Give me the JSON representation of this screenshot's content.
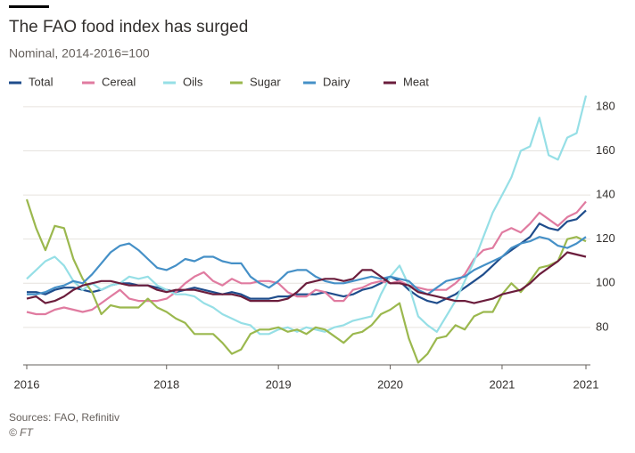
{
  "chart_data": {
    "type": "line",
    "title": "The FAO food index has surged",
    "subtitle": "Nominal, 2014-2016=100",
    "source": "Sources: FAO, Refinitiv",
    "credit": "© FT",
    "categories": [
      "2016",
      null,
      null,
      null,
      null,
      null,
      null,
      null,
      null,
      null,
      null,
      null,
      null,
      null,
      null,
      "2018",
      null,
      null,
      null,
      null,
      null,
      null,
      null,
      null,
      null,
      null,
      null,
      "2019",
      null,
      null,
      null,
      null,
      null,
      null,
      null,
      null,
      null,
      null,
      null,
      "2020",
      null,
      null,
      null,
      null,
      null,
      null,
      null,
      null,
      null,
      null,
      null,
      "2021",
      null,
      null,
      null,
      null,
      null,
      null,
      null,
      null,
      "2021"
    ],
    "ylim": [
      63,
      186
    ],
    "yticks": [
      80,
      100,
      120,
      140,
      160,
      180
    ],
    "grid": true,
    "series": [
      {
        "name": "Total",
        "color": "#1f4d8c",
        "values": [
          96,
          96,
          95,
          97,
          98,
          98,
          97,
          96,
          97,
          99,
          100,
          100,
          99,
          99,
          98,
          97,
          96,
          97,
          98,
          97,
          96,
          95,
          96,
          95,
          93,
          93,
          93,
          94,
          94,
          95,
          95,
          95,
          96,
          95,
          94,
          95,
          97,
          98,
          100,
          103,
          101,
          97,
          94,
          92,
          91,
          93,
          95,
          98,
          101,
          104,
          108,
          112,
          115,
          118,
          121,
          127,
          125,
          124,
          128,
          129,
          133
        ]
      },
      {
        "name": "Cereal",
        "color": "#e07ba0",
        "values": [
          87,
          86,
          86,
          88,
          89,
          88,
          87,
          88,
          91,
          94,
          97,
          93,
          92,
          92,
          92,
          93,
          96,
          100,
          103,
          105,
          101,
          99,
          102,
          100,
          100,
          101,
          101,
          100,
          96,
          94,
          94,
          97,
          96,
          92,
          92,
          97,
          98,
          100,
          101,
          100,
          101,
          99,
          98,
          97,
          97,
          97,
          100,
          104,
          111,
          115,
          116,
          123,
          125,
          123,
          127,
          132,
          129,
          126,
          130,
          132,
          137
        ]
      },
      {
        "name": "Oils",
        "color": "#96dfe6",
        "values": [
          102,
          106,
          110,
          112,
          108,
          101,
          97,
          100,
          97,
          99,
          100,
          103,
          102,
          103,
          99,
          97,
          95,
          95,
          94,
          91,
          89,
          86,
          84,
          82,
          81,
          77,
          77,
          79,
          80,
          78,
          80,
          79,
          78,
          80,
          81,
          83,
          84,
          85,
          95,
          103,
          108,
          99,
          85,
          81,
          78,
          85,
          92,
          101,
          110,
          121,
          132,
          140,
          148,
          160,
          162,
          175,
          158,
          156,
          166,
          168,
          185
        ]
      },
      {
        "name": "Sugar",
        "color": "#9bb84e",
        "values": [
          138,
          125,
          115,
          126,
          125,
          111,
          102,
          96,
          86,
          90,
          89,
          89,
          89,
          93,
          89,
          87,
          84,
          82,
          77,
          77,
          77,
          73,
          68,
          70,
          77,
          79,
          79,
          80,
          78,
          79,
          77,
          80,
          79,
          76,
          73,
          77,
          78,
          81,
          86,
          88,
          91,
          75,
          64,
          68,
          75,
          76,
          81,
          79,
          85,
          87,
          87,
          95,
          100,
          96,
          101,
          107,
          108,
          110,
          120,
          121,
          119
        ]
      },
      {
        "name": "Dairy",
        "color": "#4590c7",
        "values": [
          95,
          95,
          96,
          98,
          99,
          101,
          100,
          104,
          109,
          114,
          117,
          118,
          115,
          111,
          107,
          106,
          108,
          111,
          110,
          112,
          112,
          110,
          109,
          109,
          103,
          100,
          98,
          101,
          105,
          106,
          106,
          103,
          101,
          100,
          100,
          101,
          102,
          103,
          102,
          103,
          102,
          101,
          97,
          95,
          98,
          101,
          102,
          103,
          106,
          108,
          110,
          112,
          116,
          118,
          119,
          121,
          120,
          117,
          116,
          118,
          121
        ]
      },
      {
        "name": "Meat",
        "color": "#6b1d3c",
        "values": [
          93,
          94,
          91,
          92,
          94,
          97,
          99,
          100,
          101,
          101,
          100,
          99,
          99,
          99,
          97,
          96,
          97,
          97,
          97,
          96,
          95,
          95,
          95,
          94,
          92,
          92,
          92,
          92,
          93,
          96,
          100,
          101,
          102,
          102,
          101,
          102,
          106,
          106,
          103,
          100,
          100,
          99,
          96,
          95,
          94,
          93,
          92,
          92,
          91,
          92,
          93,
          95,
          96,
          97,
          100,
          104,
          107,
          110,
          114,
          113,
          112
        ]
      }
    ]
  }
}
